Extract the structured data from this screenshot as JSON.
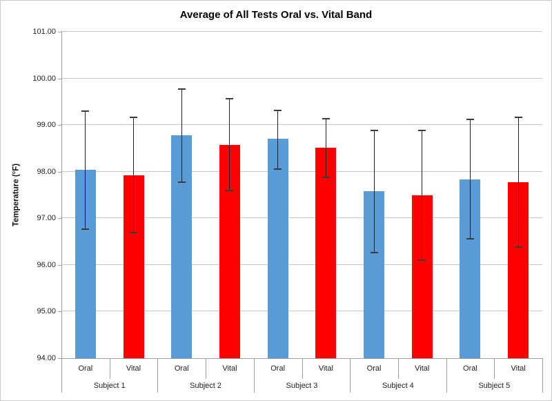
{
  "chart_data": {
    "type": "bar",
    "title": "Average of All Tests Oral vs. Vital Band",
    "ylabel": "Temperature (°F)",
    "xlabel": "",
    "ylim": [
      94,
      101
    ],
    "ytick_step": 1,
    "ytick_labels": [
      "94.00",
      "95.00",
      "96.00",
      "97.00",
      "98.00",
      "99.00",
      "100.00",
      "101.00"
    ],
    "grid": true,
    "legend_position": "none",
    "error_bars": true,
    "gridline_color": "#c6c6c6",
    "axis_color": "#9c9c9c",
    "groups": [
      "Subject 1",
      "Subject 2",
      "Subject 3",
      "Subject 4",
      "Subject 5"
    ],
    "series": [
      {
        "name": "Oral",
        "color": "#5B9BD5",
        "values": [
          98.04,
          98.78,
          98.7,
          97.58,
          97.84
        ],
        "error_high": [
          99.3,
          99.77,
          99.32,
          98.89,
          99.12
        ],
        "error_low": [
          96.77,
          97.77,
          98.06,
          96.27,
          96.56
        ]
      },
      {
        "name": "Vital",
        "color": "#FF0000",
        "values": [
          97.92,
          98.57,
          98.52,
          97.5,
          97.77
        ],
        "error_high": [
          99.17,
          99.56,
          99.13,
          98.89,
          99.17
        ],
        "error_low": [
          96.7,
          97.6,
          97.88,
          96.1,
          96.39
        ]
      }
    ]
  }
}
